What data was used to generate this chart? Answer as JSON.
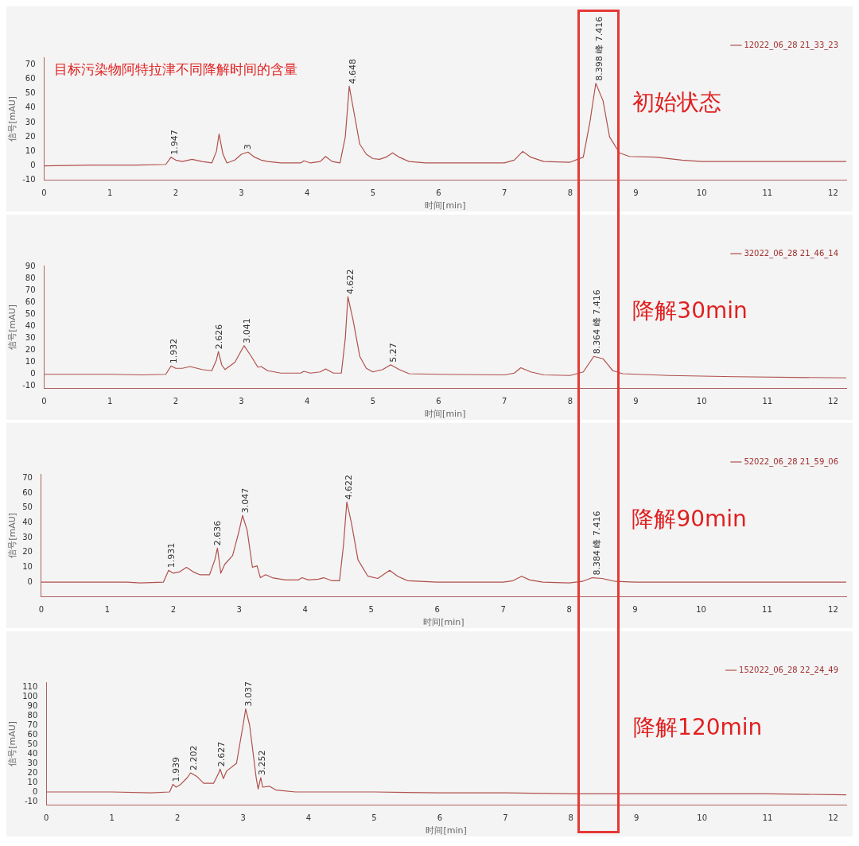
{
  "chart_data": [
    {
      "type": "line",
      "title": "目标污染物阿特拉津不同降解时间的含量",
      "subtitle": "初始状态",
      "xlabel": "时间[min]",
      "ylabel": "信号[mAU]",
      "legend": "top right",
      "marker": "none",
      "line_style": "solid",
      "grid": false,
      "xlim": [
        0,
        12.2
      ],
      "xticks": [
        0,
        1,
        2,
        3,
        4,
        5,
        6,
        7,
        8,
        9,
        10,
        11,
        12
      ],
      "ylim": [
        -10,
        75
      ],
      "yticks": [
        -10,
        0,
        10,
        20,
        30,
        40,
        50,
        60,
        70
      ],
      "series": [
        {
          "name": "12022_06_28 21_33_23",
          "color": "#b0504c",
          "x": [
            0,
            0.7,
            1.4,
            1.85,
            1.93,
            2.0,
            2.1,
            2.25,
            2.4,
            2.55,
            2.62,
            2.66,
            2.72,
            2.78,
            2.9,
            3.0,
            3.1,
            3.2,
            3.3,
            3.4,
            3.6,
            3.9,
            3.95,
            4.05,
            4.2,
            4.28,
            4.38,
            4.5,
            4.58,
            4.64,
            4.7,
            4.8,
            4.9,
            5.0,
            5.1,
            5.2,
            5.3,
            5.4,
            5.55,
            5.8,
            6.5,
            7.0,
            7.15,
            7.28,
            7.4,
            7.6,
            8.0,
            8.2,
            8.3,
            8.39,
            8.5,
            8.6,
            8.75,
            8.9,
            9.3,
            9.7,
            10,
            11,
            12.2
          ],
          "values": [
            0,
            0.5,
            0.5,
            1,
            6,
            4,
            3,
            4.5,
            3,
            2,
            10,
            22,
            8,
            2,
            4,
            8,
            9.5,
            6,
            4,
            3,
            2,
            2,
            3.5,
            2,
            3,
            6.5,
            3,
            2,
            20,
            55,
            40,
            15,
            8,
            5,
            4.5,
            6,
            9,
            6,
            3,
            2,
            2,
            2,
            4,
            10,
            6,
            3,
            2.5,
            6,
            30,
            57,
            45,
            20,
            9,
            6.5,
            6,
            4,
            3,
            3,
            3
          ]
        }
      ],
      "annotations": [
        {
          "text": "1.947",
          "x": 1.947,
          "y": 6
        },
        {
          "text": "3",
          "x": 3.05,
          "y": 9.5
        },
        {
          "text": "4.648",
          "x": 4.648,
          "y": 55
        },
        {
          "text": "8.398 峰 7.416",
          "x": 8.398,
          "y": 57
        }
      ]
    },
    {
      "type": "line",
      "subtitle": "降解30min",
      "xlabel": "时间[min]",
      "ylabel": "信号[mAU]",
      "legend": "top right",
      "marker": "none",
      "line_style": "solid",
      "grid": false,
      "xlim": [
        0,
        12.2
      ],
      "xticks": [
        0,
        1,
        2,
        3,
        4,
        5,
        6,
        7,
        8,
        9,
        10,
        11,
        12
      ],
      "ylim": [
        -12,
        91
      ],
      "yticks": [
        -10,
        0,
        10,
        20,
        30,
        40,
        50,
        60,
        70,
        80,
        90
      ],
      "series": [
        {
          "name": "32022_06_28 21_46_14",
          "color": "#b0504c",
          "x": [
            0,
            1.0,
            1.5,
            1.85,
            1.93,
            2.0,
            2.1,
            2.22,
            2.4,
            2.55,
            2.62,
            2.65,
            2.7,
            2.75,
            2.9,
            3.04,
            3.15,
            3.25,
            3.3,
            3.4,
            3.6,
            3.9,
            3.95,
            4.05,
            4.2,
            4.28,
            4.4,
            4.52,
            4.58,
            4.62,
            4.7,
            4.8,
            4.9,
            5.0,
            5.15,
            5.27,
            5.4,
            5.55,
            6.0,
            7.0,
            7.15,
            7.25,
            7.4,
            7.6,
            8.0,
            8.2,
            8.36,
            8.5,
            8.65,
            8.8,
            9.5,
            10.5,
            12.2
          ],
          "values": [
            0,
            0,
            -0.5,
            0,
            7,
            5,
            5,
            6.5,
            4,
            3,
            12,
            19,
            8,
            4,
            10,
            24,
            15,
            6,
            6.5,
            3,
            1,
            1,
            2.5,
            1,
            2,
            4.5,
            1,
            1,
            30,
            65,
            45,
            15,
            5,
            2,
            4,
            8,
            4,
            0.5,
            0,
            -0.5,
            1,
            5.5,
            2,
            -0.5,
            -1,
            2,
            15,
            13,
            3,
            0.5,
            -1,
            -2,
            -3
          ]
        }
      ],
      "annotations": [
        {
          "text": "1.932",
          "x": 1.932,
          "y": 7
        },
        {
          "text": "2.626",
          "x": 2.626,
          "y": 19
        },
        {
          "text": "3.041",
          "x": 3.041,
          "y": 24
        },
        {
          "text": "4.622",
          "x": 4.622,
          "y": 65
        },
        {
          "text": "5.27",
          "x": 5.27,
          "y": 8
        },
        {
          "text": "8.364 峰 7.416",
          "x": 8.364,
          "y": 15
        }
      ]
    },
    {
      "type": "line",
      "subtitle": "降解90min",
      "xlabel": "时间[min]",
      "ylabel": "信号[mAU]",
      "legend": "top right",
      "marker": "none",
      "line_style": "solid",
      "grid": false,
      "xlim": [
        0,
        12.2
      ],
      "xticks": [
        0,
        1,
        2,
        3,
        4,
        5,
        6,
        7,
        8,
        9,
        10,
        11,
        12
      ],
      "ylim": [
        -10,
        73
      ],
      "yticks": [
        0,
        10,
        20,
        30,
        40,
        50,
        60,
        70
      ],
      "series": [
        {
          "name": "52022_06_28 21_59_06",
          "color": "#b0504c",
          "x": [
            0,
            1.3,
            1.5,
            1.85,
            1.93,
            2.0,
            2.1,
            2.2,
            2.3,
            2.4,
            2.55,
            2.63,
            2.67,
            2.72,
            2.78,
            2.9,
            3.0,
            3.05,
            3.12,
            3.2,
            3.27,
            3.32,
            3.4,
            3.5,
            3.7,
            3.9,
            3.95,
            4.05,
            4.2,
            4.28,
            4.4,
            4.52,
            4.58,
            4.63,
            4.7,
            4.8,
            4.95,
            5.1,
            5.28,
            5.4,
            5.55,
            6.0,
            7.0,
            7.15,
            7.28,
            7.4,
            7.6,
            8.0,
            8.2,
            8.35,
            8.5,
            8.7,
            9,
            12.2
          ],
          "values": [
            0,
            0,
            -0.5,
            0,
            8,
            6,
            7,
            10,
            7,
            5,
            5,
            15,
            23,
            6,
            12,
            18,
            35,
            45,
            35,
            10,
            11,
            3,
            5,
            3,
            1.5,
            1.5,
            3,
            1.5,
            2,
            3,
            1,
            1,
            25,
            54,
            40,
            15,
            4,
            2.5,
            8,
            4,
            1,
            0,
            0,
            1,
            4,
            1.5,
            0,
            -0.5,
            0.5,
            3,
            2.5,
            0.5,
            0,
            0
          ]
        }
      ],
      "annotations": [
        {
          "text": "1.931",
          "x": 1.931,
          "y": 8
        },
        {
          "text": "2.636",
          "x": 2.636,
          "y": 23
        },
        {
          "text": "3.047",
          "x": 3.047,
          "y": 45
        },
        {
          "text": "4.622",
          "x": 4.622,
          "y": 54
        },
        {
          "text": "8.384 峰 7.416",
          "x": 8.384,
          "y": 3
        }
      ]
    },
    {
      "type": "line",
      "subtitle": "降解120min",
      "xlabel": "时间[min]",
      "ylabel": "信号[mAU]",
      "legend": "top right",
      "marker": "none",
      "line_style": "solid",
      "grid": false,
      "xlim": [
        0,
        12.2
      ],
      "xticks": [
        0,
        1,
        2,
        3,
        4,
        5,
        6,
        7,
        8,
        9,
        10,
        11,
        12
      ],
      "ylim": [
        -14,
        115
      ],
      "yticks": [
        -10,
        0,
        10,
        20,
        30,
        40,
        50,
        60,
        70,
        80,
        90,
        100,
        110
      ],
      "series": [
        {
          "name": "152022_06_28 22_24_49",
          "color": "#b0504c",
          "x": [
            0,
            1.0,
            1.6,
            1.88,
            1.93,
            1.98,
            2.05,
            2.15,
            2.2,
            2.3,
            2.4,
            2.55,
            2.63,
            2.65,
            2.7,
            2.75,
            2.9,
            3.0,
            3.04,
            3.1,
            3.2,
            3.23,
            3.27,
            3.3,
            3.4,
            3.5,
            3.8,
            4.0,
            5,
            6,
            7,
            8,
            9,
            10,
            11,
            12.2
          ],
          "values": [
            0,
            0,
            -1,
            0,
            8,
            5,
            8,
            15,
            20,
            16,
            9,
            9,
            20,
            24,
            14,
            22,
            30,
            70,
            87,
            70,
            15,
            3,
            15,
            5,
            6,
            2,
            0,
            0,
            0,
            -1,
            -1,
            -2,
            -2,
            -2,
            -2,
            -3
          ]
        }
      ],
      "annotations": [
        {
          "text": "1.939",
          "x": 1.939,
          "y": 8
        },
        {
          "text": "2.202",
          "x": 2.202,
          "y": 20
        },
        {
          "text": "2.627",
          "x": 2.627,
          "y": 24
        },
        {
          "text": "3.037",
          "x": 3.037,
          "y": 87
        },
        {
          "text": "3.252",
          "x": 3.252,
          "y": 15
        }
      ]
    }
  ]
}
